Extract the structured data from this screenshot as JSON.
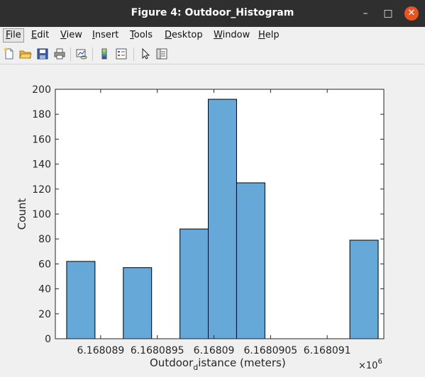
{
  "window": {
    "title": "Figure 4: Outdoor_Histogram",
    "controls": {
      "minimize": "–",
      "maximize": "□",
      "close": "✕"
    }
  },
  "menubar": {
    "items": [
      {
        "label": "File",
        "mnemonic": "F",
        "rest": "ile"
      },
      {
        "label": "Edit",
        "mnemonic": "E",
        "rest": "dit"
      },
      {
        "label": "View",
        "mnemonic": "V",
        "rest": "iew"
      },
      {
        "label": "Insert",
        "mnemonic": "I",
        "rest": "nsert"
      },
      {
        "label": "Tools",
        "mnemonic": "T",
        "rest": "ools"
      },
      {
        "label": "Desktop",
        "mnemonic": "D",
        "rest": "esktop"
      },
      {
        "label": "Window",
        "mnemonic": "W",
        "rest": "indow"
      },
      {
        "label": "Help",
        "mnemonic": "H",
        "rest": "elp"
      }
    ],
    "dock_glyph": "↘"
  },
  "toolbar": {
    "icons": [
      "new-figure-icon",
      "open-file-icon",
      "save-icon",
      "print-icon",
      "link-plot-icon",
      "colorbar-icon",
      "legend-icon",
      "edit-plot-icon",
      "property-inspector-icon"
    ]
  },
  "chart_data": {
    "type": "bar",
    "title": "",
    "xlabel_main": "Outdoor",
    "xlabel_sub": "d",
    "xlabel_rest": "istance (meters)",
    "ylabel": "Count",
    "exponent_base": "×10",
    "exponent_power": "6",
    "ylim": [
      0,
      200
    ],
    "yticks": [
      0,
      20,
      40,
      60,
      80,
      100,
      120,
      140,
      160,
      180,
      200
    ],
    "xlim": [
      6.1680886,
      6.1680915
    ],
    "xticks": [
      {
        "value": 6.168089,
        "label": "6.168089"
      },
      {
        "value": 6.1680895,
        "label": "6.1680895"
      },
      {
        "value": 6.16809,
        "label": "6.16809"
      },
      {
        "value": 6.1680905,
        "label": "6.1680905"
      },
      {
        "value": 6.168091,
        "label": "6.168091"
      }
    ],
    "bin_width": 2.5e-07,
    "bins": [
      {
        "start": 6.1680887,
        "count": 62
      },
      {
        "start": 6.16808945,
        "count": 0
      },
      {
        "start": 6.1680892,
        "count": 57
      },
      {
        "start": 6.16808945,
        "count": 0
      },
      {
        "start": 6.1680897,
        "count": 88
      },
      {
        "start": 6.16808995,
        "count": 192
      },
      {
        "start": 6.16809045,
        "count": 0
      },
      {
        "start": 6.1680902,
        "count": 125
      },
      {
        "start": 6.1680912,
        "count": 79
      }
    ],
    "grid": false,
    "legend": "none",
    "bar_color": "#66a8d8",
    "bar_edge": "#000000"
  }
}
